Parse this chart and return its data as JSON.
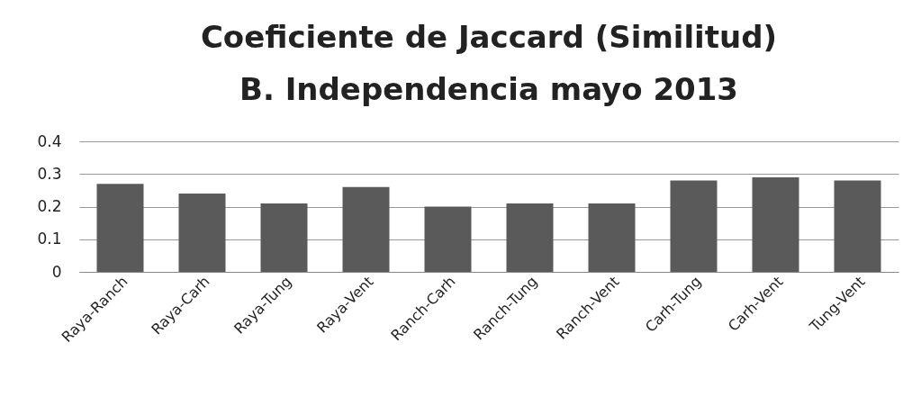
{
  "chart_data": {
    "type": "bar",
    "title": [
      "Coeficiente de Jaccard (Similitud)",
      "B. Independencia mayo 2013"
    ],
    "categories": [
      "Raya-Ranch",
      "Raya-Carh",
      "Raya-Tung",
      "Raya-Vent",
      "Ranch-Carh",
      "Ranch-Tung",
      "Ranch-Vent",
      "Carh-Tung",
      "Carh-Vent",
      "Tung-Vent"
    ],
    "values": [
      0.27,
      0.24,
      0.21,
      0.26,
      0.2,
      0.21,
      0.21,
      0.28,
      0.29,
      0.28
    ],
    "color": "#5a5a5a",
    "ylim": [
      0,
      0.4
    ],
    "yticks": [
      0,
      0.1,
      0.2,
      0.3,
      0.4
    ],
    "grid": true
  }
}
